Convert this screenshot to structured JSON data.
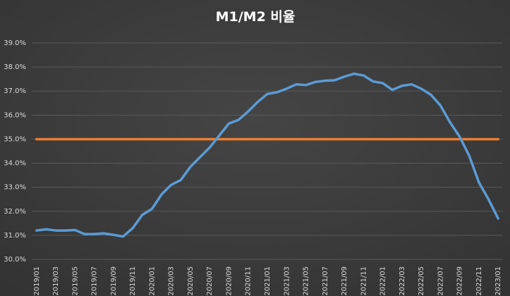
{
  "chart_data": {
    "type": "line",
    "title": "M1/M2 비율",
    "categories": [
      "2019/01",
      null,
      "2019/03",
      null,
      "2019/05",
      null,
      "2019/07",
      null,
      "2019/09",
      null,
      "2019/11",
      null,
      "2020/01",
      null,
      "2020/03",
      null,
      "2020/05",
      null,
      "2020/07",
      null,
      "2020/09",
      null,
      "2020/11",
      null,
      "2021/01",
      null,
      "2021/03",
      null,
      "2021/05",
      null,
      "2021/07",
      null,
      "2021/09",
      null,
      "2021/11",
      null,
      "2022/01",
      null,
      "2022/03",
      null,
      "2022/05",
      null,
      "2022/07",
      null,
      "2022/09",
      null,
      "2022/11",
      null,
      "2023/01"
    ],
    "series": [
      {
        "color": "#5b9bd5",
        "values": [
          31.2,
          31.25,
          31.2,
          31.2,
          31.22,
          31.05,
          31.05,
          31.08,
          31.02,
          30.95,
          31.3,
          31.85,
          32.1,
          32.7,
          33.1,
          33.3,
          33.85,
          34.25,
          34.65,
          35.15,
          35.65,
          35.8,
          36.15,
          36.55,
          36.88,
          36.95,
          37.1,
          37.28,
          37.25,
          37.38,
          37.43,
          37.45,
          37.6,
          37.72,
          37.65,
          37.4,
          37.33,
          37.05,
          37.22,
          37.28,
          37.1,
          36.85,
          36.4,
          35.7,
          35.1,
          34.3,
          33.2,
          32.5,
          31.7
        ]
      },
      {
        "color": "#ed7d31",
        "values": [
          35,
          35,
          35,
          35,
          35,
          35,
          35,
          35,
          35,
          35,
          35,
          35,
          35,
          35,
          35,
          35,
          35,
          35,
          35,
          35,
          35,
          35,
          35,
          35,
          35,
          35,
          35,
          35,
          35,
          35,
          35,
          35,
          35,
          35,
          35,
          35,
          35,
          35,
          35,
          35,
          35,
          35,
          35,
          35,
          35,
          35,
          35,
          35,
          35
        ]
      }
    ],
    "ylim": [
      30,
      39
    ],
    "yticks": [
      {
        "value": 30,
        "label": "30.0%"
      },
      {
        "value": 31,
        "label": "31.0%"
      },
      {
        "value": 32,
        "label": "32.0%"
      },
      {
        "value": 33,
        "label": "33.0%"
      },
      {
        "value": 34,
        "label": "34.0%"
      },
      {
        "value": 35,
        "label": "35.0%"
      },
      {
        "value": 36,
        "label": "36.0%"
      },
      {
        "value": 37,
        "label": "37.0%"
      },
      {
        "value": 38,
        "label": "38.0%"
      },
      {
        "value": 39,
        "label": "39.0%"
      }
    ],
    "grid": true
  }
}
